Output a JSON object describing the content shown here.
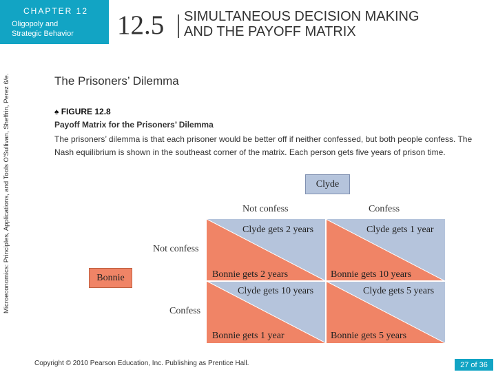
{
  "header": {
    "chapter": "CHAPTER 12",
    "subject_line1": "Oligopoly and",
    "subject_line2": "Strategic Behavior",
    "section_number": "12.5",
    "section_title_line1": "SIMULTANEOUS DECISION MAKING",
    "section_title_line2": "AND THE PAYOFF MATRIX"
  },
  "side_text": "Microeconomics: Principles, Applications, and Tools    O'Sullivan, Sheffrin, Perez   6/e.",
  "heading": "The Prisoners’ Dilemma",
  "figure": {
    "label": "♠ FIGURE 12.8",
    "subtitle": "Payoff Matrix for the Prisoners’ Dilemma",
    "caption": "The prisoners’ dilemma is that each prisoner would be better off if neither confessed, but both people confess. The Nash equilibrium is shown in the southeast corner of the matrix. Each person gets five years of prison time."
  },
  "matrix": {
    "column_player": "Clyde",
    "row_player": "Bonnie",
    "col_labels": [
      "Not confess",
      "Confess"
    ],
    "row_labels": [
      "Not confess",
      "Confess"
    ],
    "cells": {
      "nc_nc": {
        "clyde": "Clyde gets 2 years",
        "bonnie": "Bonnie gets 2 years"
      },
      "nc_c": {
        "clyde": "Clyde gets 1 year",
        "bonnie": "Bonnie gets 10 years"
      },
      "c_nc": {
        "clyde": "Clyde gets 10 years",
        "bonnie": "Bonnie gets 1 year"
      },
      "c_c": {
        "clyde": "Clyde gets 5 years",
        "bonnie": "Bonnie gets 5 years"
      }
    },
    "colors": {
      "clyde": "#b5c4dc",
      "bonnie": "#f08466"
    }
  },
  "footer": {
    "copyright": "Copyright © 2010  Pearson Education, Inc. Publishing as Prentice Hall.",
    "page": "27 of 36"
  }
}
